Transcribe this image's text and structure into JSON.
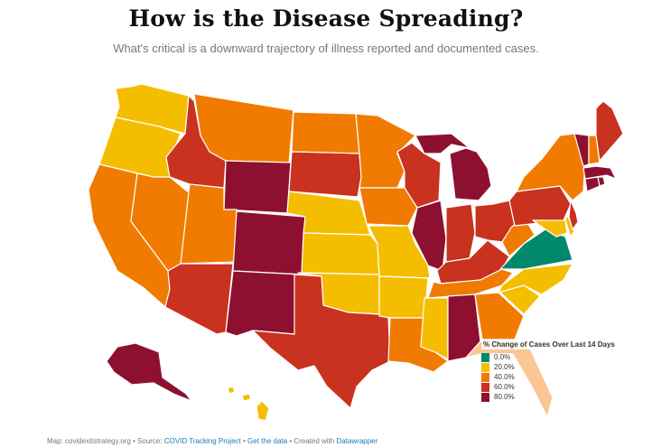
{
  "title": "How is the Disease Spreading?",
  "subtitle": "What's critical is a downward trajectory of illness reported and documented cases.",
  "legend": {
    "title": "% Change of Cases Over Last 14 Days",
    "items": [
      {
        "label": "0.0%",
        "color": "#00876c"
      },
      {
        "label": "20.0%",
        "color": "#f5bd00"
      },
      {
        "label": "40.0%",
        "color": "#f07b00"
      },
      {
        "label": "60.0%",
        "color": "#c9321e"
      },
      {
        "label": "80.0%",
        "color": "#8e1030"
      }
    ]
  },
  "colors": {
    "teal": "#00876c",
    "yellow": "#f5bd00",
    "orange": "#f07b00",
    "red": "#c9321e",
    "maroon": "#8e1030",
    "peach": "#fcc594"
  },
  "states": [
    {
      "code": "WA",
      "bucket": "yellow"
    },
    {
      "code": "OR",
      "bucket": "yellow"
    },
    {
      "code": "CA",
      "bucket": "orange"
    },
    {
      "code": "NV",
      "bucket": "orange"
    },
    {
      "code": "ID",
      "bucket": "red"
    },
    {
      "code": "MT",
      "bucket": "orange"
    },
    {
      "code": "WY",
      "bucket": "maroon"
    },
    {
      "code": "UT",
      "bucket": "orange"
    },
    {
      "code": "AZ",
      "bucket": "red"
    },
    {
      "code": "CO",
      "bucket": "maroon"
    },
    {
      "code": "NM",
      "bucket": "maroon"
    },
    {
      "code": "ND",
      "bucket": "orange"
    },
    {
      "code": "SD",
      "bucket": "red"
    },
    {
      "code": "NE",
      "bucket": "yellow"
    },
    {
      "code": "KS",
      "bucket": "yellow"
    },
    {
      "code": "OK",
      "bucket": "yellow"
    },
    {
      "code": "TX",
      "bucket": "red"
    },
    {
      "code": "MN",
      "bucket": "orange"
    },
    {
      "code": "IA",
      "bucket": "orange"
    },
    {
      "code": "MO",
      "bucket": "yellow"
    },
    {
      "code": "AR",
      "bucket": "yellow"
    },
    {
      "code": "LA",
      "bucket": "orange"
    },
    {
      "code": "WI",
      "bucket": "red"
    },
    {
      "code": "IL",
      "bucket": "maroon"
    },
    {
      "code": "MS",
      "bucket": "yellow"
    },
    {
      "code": "MI",
      "bucket": "maroon"
    },
    {
      "code": "IN",
      "bucket": "red"
    },
    {
      "code": "KY",
      "bucket": "red"
    },
    {
      "code": "TN",
      "bucket": "orange"
    },
    {
      "code": "AL",
      "bucket": "maroon"
    },
    {
      "code": "OH",
      "bucket": "red"
    },
    {
      "code": "GA",
      "bucket": "orange"
    },
    {
      "code": "FL",
      "bucket": "peach"
    },
    {
      "code": "SC",
      "bucket": "yellow"
    },
    {
      "code": "NC",
      "bucket": "yellow"
    },
    {
      "code": "VA",
      "bucket": "teal"
    },
    {
      "code": "WV",
      "bucket": "orange"
    },
    {
      "code": "PA",
      "bucket": "red"
    },
    {
      "code": "NY",
      "bucket": "orange"
    },
    {
      "code": "MD",
      "bucket": "yellow"
    },
    {
      "code": "DE",
      "bucket": "yellow"
    },
    {
      "code": "NJ",
      "bucket": "red"
    },
    {
      "code": "CT",
      "bucket": "maroon"
    },
    {
      "code": "RI",
      "bucket": "maroon"
    },
    {
      "code": "MA",
      "bucket": "maroon"
    },
    {
      "code": "VT",
      "bucket": "maroon"
    },
    {
      "code": "NH",
      "bucket": "orange"
    },
    {
      "code": "ME",
      "bucket": "red"
    },
    {
      "code": "AK",
      "bucket": "maroon"
    },
    {
      "code": "HI",
      "bucket": "yellow"
    }
  ],
  "footer": {
    "prefix": "Map: covidexitstrategy.org • Source:",
    "source_link": "COVID Tracking Project",
    "sep1": "•",
    "data_link": "Get the data",
    "sep2": "• Created with",
    "tool_link": "Datawrapper"
  }
}
